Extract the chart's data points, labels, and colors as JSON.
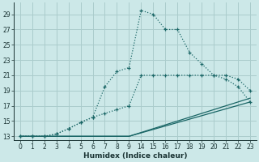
{
  "xlabel": "Humidex (Indice chaleur)",
  "bg_color": "#cce8e8",
  "grid_color": "#aacccc",
  "line_color": "#1a6666",
  "ylim": [
    12.5,
    30.5
  ],
  "yticks": [
    13,
    15,
    17,
    19,
    21,
    23,
    25,
    27,
    29
  ],
  "xtick_positions": [
    0,
    1,
    2,
    3,
    4,
    5,
    6,
    7,
    8,
    9,
    10,
    11,
    12,
    13,
    14,
    15,
    16,
    17,
    18,
    19
  ],
  "xtick_labels": [
    "0",
    "1",
    "2",
    "3",
    "4",
    "5",
    "6",
    "7",
    "8",
    "9",
    "14",
    "15",
    "16",
    "17",
    "18",
    "19",
    "20",
    "21",
    "22",
    "23"
  ],
  "xlim": [
    -0.5,
    19.5
  ],
  "line1_x": [
    0,
    1,
    2,
    3,
    4,
    5,
    6,
    7,
    8,
    9,
    10,
    11,
    12,
    13,
    14,
    15,
    16,
    17,
    18,
    19
  ],
  "line1_y": [
    13,
    13,
    13,
    13.3,
    14,
    14.8,
    15.5,
    19.5,
    21.5,
    22,
    29.5,
    29,
    27,
    27,
    24,
    22.5,
    21,
    20.5,
    19.5,
    17.5
  ],
  "line2_x": [
    0,
    1,
    2,
    3,
    4,
    5,
    6,
    7,
    8,
    9,
    10,
    11,
    12,
    13,
    14,
    15,
    16,
    17,
    18,
    19
  ],
  "line2_y": [
    13,
    13,
    13,
    13.3,
    14,
    14.8,
    15.5,
    16,
    16.5,
    17,
    21,
    21,
    21,
    21,
    21,
    21,
    21,
    21,
    20.5,
    19
  ],
  "line3_x": [
    0,
    9,
    19
  ],
  "line3_y": [
    13,
    13,
    18
  ],
  "line4_x": [
    0,
    9,
    19
  ],
  "line4_y": [
    13,
    13,
    17.5
  ]
}
